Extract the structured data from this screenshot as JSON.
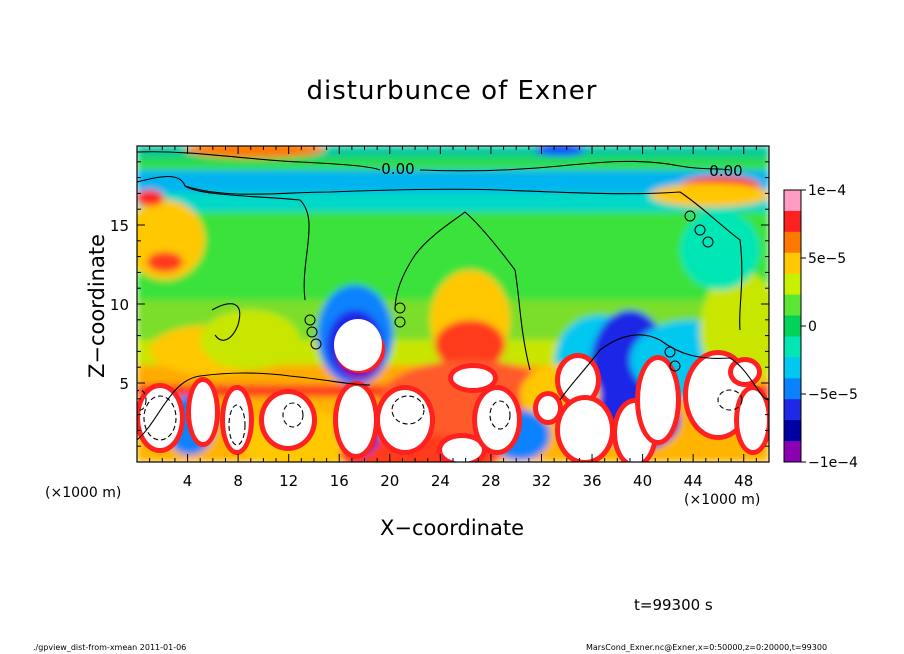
{
  "chart_data": {
    "type": "heatmap",
    "title": "disturbunce of Exner",
    "xlabel": "X−coordinate",
    "ylabel": "Z−coordinate",
    "x_unit": "(×1000 m)",
    "z_unit": "(×1000 m)",
    "xlim": [
      0,
      50
    ],
    "zlim": [
      0,
      20
    ],
    "x_ticks": [
      "4",
      "8",
      "12",
      "16",
      "20",
      "24",
      "28",
      "32",
      "36",
      "40",
      "44",
      "48"
    ],
    "z_ticks": [
      "5",
      "10",
      "15"
    ],
    "colorbar": {
      "range": [
        -0.0001,
        0.0001
      ],
      "tick_labels": [
        "1e−4",
        "5e−5",
        "0",
        "−5e−5",
        "−1e−4"
      ],
      "colors": [
        "#ff9cc4",
        "#ff2020",
        "#ff7800",
        "#ffc800",
        "#c8f000",
        "#5ae633",
        "#00d25a",
        "#00e6b4",
        "#00c8f0",
        "#0a82ff",
        "#1e28e6",
        "#0000a0",
        "#8c00b4"
      ]
    },
    "contour_labels": [
      "0.00",
      "0.00"
    ],
    "time": "t=99300 s"
  },
  "footer": {
    "left": "./gpview_dist-from-xmean  2011-01-06",
    "right": "MarsCond_Exner.nc@Exner,x=0:50000,z=0:20000,t=99300"
  }
}
